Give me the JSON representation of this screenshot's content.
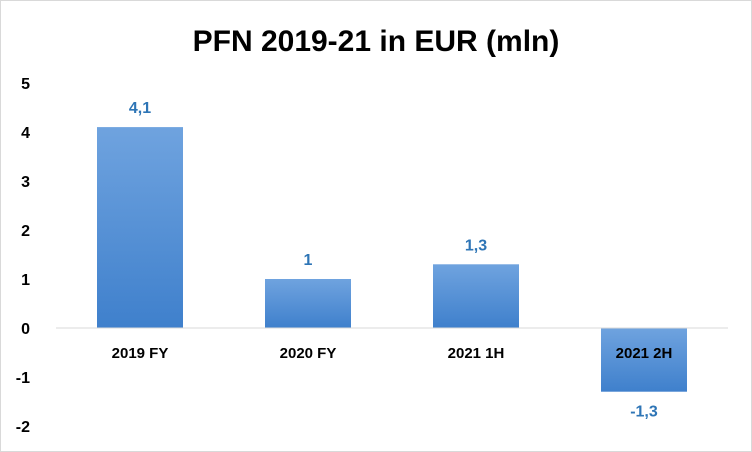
{
  "chart_data": {
    "type": "bar",
    "title": "PFN 2019-21 in EUR (mln)",
    "categories": [
      "2019 FY",
      "2020 FY",
      "2021 1H",
      "2021 2H"
    ],
    "values": [
      4.1,
      1,
      1.3,
      -1.3
    ],
    "data_labels": [
      "4,1",
      "1",
      "1,3",
      "-1,3"
    ],
    "ylim": [
      -2,
      5
    ],
    "yticks": [
      5,
      4,
      3,
      2,
      1,
      0,
      -1,
      -2
    ],
    "ytick_labels": [
      "5",
      "4",
      "3",
      "2",
      "1",
      "0",
      "-1",
      "-2"
    ],
    "xlabel": "",
    "ylabel": "",
    "grid": false,
    "legend": "none",
    "colors": {
      "bar_light": "#6fa3df",
      "bar_dark": "#3f80cc",
      "label": "#2e75b6",
      "axis": "#d9d9d9"
    }
  }
}
